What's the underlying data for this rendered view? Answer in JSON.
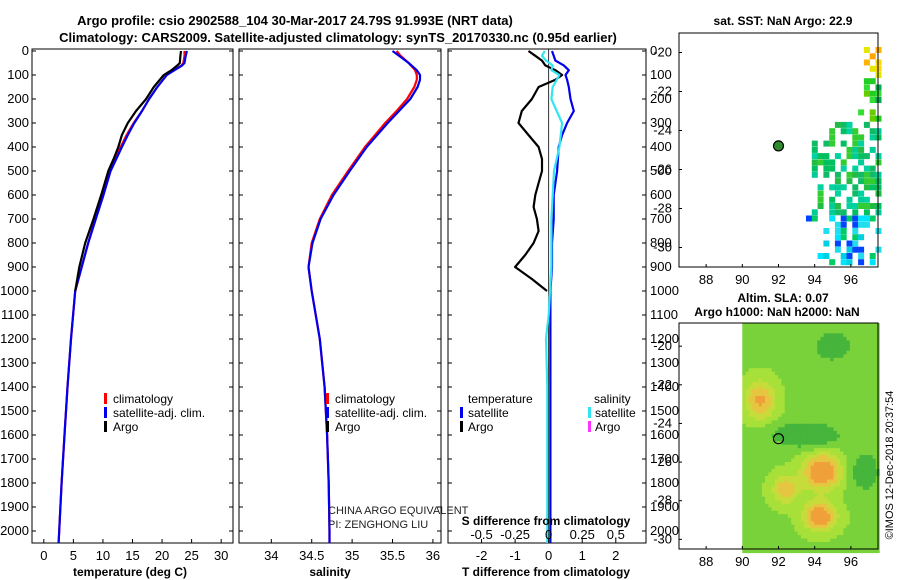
{
  "header": {
    "title_line1": "Argo profile: csio 2902588_104 30-Mar-2017 24.79S 91.993E (NRT data)",
    "title_line2": "Climatology: CARS2009. Satellite-adjusted climatology: synTS_20170330.nc (0.95d earlier)"
  },
  "colors": {
    "climatology": "#ff0000",
    "satellite": "#0000ee",
    "argo": "#000000",
    "salinity_satellite": "#33e5f0",
    "salinity_argo": "#ff33ff"
  },
  "depth_axis": {
    "range": [
      0,
      2050
    ],
    "ticks": [
      0,
      100,
      200,
      300,
      400,
      500,
      600,
      700,
      800,
      900,
      1000,
      1100,
      1200,
      1300,
      1400,
      1500,
      1600,
      1700,
      1800,
      1900,
      2000
    ],
    "tick_labels": [
      "0",
      "100",
      "200",
      "300",
      "400",
      "500",
      "600",
      "700",
      "800",
      "900",
      "1000",
      "1100",
      "1200",
      "1300",
      "1400",
      "1500",
      "1600",
      "1700",
      "1800",
      "1900",
      "2000"
    ]
  },
  "legend_labels": {
    "climatology": "climatology",
    "satellite_adj": "satellite-adj. clim.",
    "argo": "Argo"
  },
  "watermark": {
    "line1": "CHINA ARGO EQUIVALENT",
    "line2": "PI: ZENGHONG LIU"
  },
  "diff_legend": {
    "temperature_title": "temperature",
    "salinity_title": "salinity",
    "satellite": "satellite",
    "argo": "Argo"
  },
  "maps": {
    "sst_title": "sat. SST: NaN Argo: 22.9",
    "sla_title_line1": "Altim. SLA: 0.07",
    "sla_title_line2": "Argo h1000: NaN h2000: NaN",
    "lat_ticks": [
      "-20",
      "-22",
      "-24",
      "-26",
      "-28",
      "-30"
    ],
    "lon_ticks": [
      "88",
      "90",
      "92",
      "94",
      "96"
    ],
    "argo_position": {
      "lon": 92.0,
      "lat": -24.79
    }
  },
  "timestamp": "©IMOS 12-Dec-2018 20:37:54",
  "chart_data": [
    {
      "type": "line",
      "title": "temperature profile",
      "xlabel": "temperature (deg C)",
      "ylabel": "",
      "xlim": [
        -2,
        32
      ],
      "ylim": [
        2050,
        0
      ],
      "x_ticks": [
        0,
        5,
        10,
        15,
        20,
        25,
        30
      ],
      "x_tick_labels": [
        "0",
        "5",
        "10",
        "15",
        "20",
        "25",
        "30"
      ],
      "series": [
        {
          "name": "climatology",
          "depth": [
            0,
            20,
            50,
            60,
            80,
            100,
            150,
            200,
            250,
            300,
            350,
            400,
            500,
            600,
            700,
            800,
            900,
            1000,
            1200,
            1400,
            1600,
            1800,
            2000,
            2050
          ],
          "values": [
            23.8,
            23.8,
            23.6,
            23.3,
            22.0,
            20.8,
            19.2,
            17.8,
            16.6,
            15.2,
            14.0,
            13.0,
            11.2,
            10.0,
            8.7,
            7.5,
            6.4,
            5.3,
            4.6,
            4.0,
            3.5,
            3.0,
            2.6,
            2.5
          ]
        },
        {
          "name": "satellite-adj. clim.",
          "depth": [
            0,
            20,
            50,
            60,
            80,
            100,
            150,
            200,
            250,
            300,
            350,
            400,
            500,
            600,
            700,
            800,
            900,
            1000,
            1200,
            1400,
            1600,
            1800,
            2000,
            2050
          ],
          "values": [
            24.2,
            24.0,
            23.8,
            23.4,
            22.1,
            20.8,
            19.2,
            17.8,
            16.6,
            15.3,
            14.2,
            13.2,
            11.3,
            10.1,
            8.8,
            7.5,
            6.4,
            5.3,
            4.6,
            4.0,
            3.5,
            3.0,
            2.6,
            2.5
          ]
        },
        {
          "name": "Argo",
          "depth": [
            0,
            20,
            50,
            60,
            80,
            100,
            150,
            200,
            250,
            300,
            350,
            400,
            450,
            500,
            600,
            700,
            800,
            900,
            1000
          ],
          "values": [
            23.2,
            23.1,
            23.0,
            22.6,
            21.6,
            20.3,
            18.6,
            17.3,
            15.6,
            14.2,
            13.2,
            12.6,
            11.8,
            10.9,
            9.7,
            8.4,
            7.0,
            6.0,
            5.3
          ]
        }
      ]
    },
    {
      "type": "line",
      "title": "salinity profile",
      "xlabel": "salinity",
      "ylabel": "",
      "xlim": [
        33.6,
        36.1
      ],
      "ylim": [
        2050,
        0
      ],
      "x_ticks": [
        34,
        34.5,
        35,
        35.5,
        36
      ],
      "x_tick_labels": [
        "34",
        "34.5",
        "35",
        "35.5",
        "36"
      ],
      "series": [
        {
          "name": "climatology",
          "depth": [
            0,
            20,
            50,
            80,
            100,
            120,
            150,
            200,
            250,
            300,
            400,
            500,
            600,
            700,
            800,
            900,
            1000,
            1200,
            1400,
            1600,
            1800,
            2000,
            2050
          ],
          "values": [
            35.55,
            35.6,
            35.7,
            35.78,
            35.8,
            35.8,
            35.77,
            35.68,
            35.55,
            35.41,
            35.16,
            34.95,
            34.75,
            34.6,
            34.5,
            34.46,
            34.5,
            34.6,
            34.66,
            34.69,
            34.71,
            34.72,
            34.72
          ]
        },
        {
          "name": "satellite-adj. clim.",
          "depth": [
            0,
            20,
            50,
            80,
            100,
            120,
            150,
            200,
            250,
            300,
            400,
            500,
            600,
            700,
            800,
            900,
            1000,
            1200,
            1400,
            1600,
            1800,
            2000,
            2050
          ],
          "values": [
            35.5,
            35.58,
            35.7,
            35.8,
            35.84,
            35.84,
            35.81,
            35.72,
            35.58,
            35.44,
            35.18,
            34.97,
            34.77,
            34.61,
            34.51,
            34.46,
            34.5,
            34.6,
            34.66,
            34.69,
            34.71,
            34.72,
            34.72
          ]
        }
      ]
    },
    {
      "type": "line",
      "title": "difference from climatology",
      "xlabel": "T difference from climatology",
      "x2label": "S difference from climatology",
      "ylabel": "",
      "xlim": [
        -3.0,
        2.9
      ],
      "x2lim": [
        -0.75,
        0.725
      ],
      "ylim": [
        2050,
        0
      ],
      "x_ticks": [
        -2,
        -1,
        0,
        1,
        2
      ],
      "x_tick_labels": [
        "-2",
        "-1",
        "0",
        "1",
        "2"
      ],
      "x2_ticks": [
        -0.5,
        -0.25,
        0,
        0.25,
        0.5
      ],
      "x2_tick_labels": [
        "-0.5",
        "-0.25",
        "0",
        "0.25",
        "0.5"
      ],
      "series": [
        {
          "name": "temperature satellite",
          "axis": "T",
          "depth": [
            0,
            20,
            40,
            60,
            80,
            100,
            120,
            150,
            200,
            250,
            300,
            350,
            400,
            500,
            600,
            700,
            800,
            900,
            1000,
            1200,
            1400,
            1600,
            1800,
            2000,
            2050
          ],
          "values": [
            0.1,
            0.15,
            0.2,
            0.45,
            0.6,
            0.5,
            0.55,
            0.6,
            0.65,
            0.75,
            0.55,
            0.4,
            0.3,
            0.25,
            0.15,
            0.15,
            0.1,
            0.1,
            0.05,
            0.05,
            0.05,
            0.05,
            0.05,
            0.05,
            0.05
          ]
        },
        {
          "name": "temperature Argo",
          "axis": "T",
          "depth": [
            0,
            20,
            40,
            60,
            80,
            100,
            120,
            150,
            200,
            250,
            300,
            350,
            400,
            450,
            500,
            550,
            600,
            650,
            700,
            750,
            800,
            850,
            900,
            950,
            1000
          ],
          "values": [
            -0.6,
            -0.4,
            -0.2,
            -0.1,
            0.2,
            0.4,
            0.2,
            -0.3,
            -0.5,
            -0.8,
            -0.9,
            -0.6,
            -0.3,
            -0.2,
            -0.2,
            -0.3,
            -0.4,
            -0.45,
            -0.35,
            -0.3,
            -0.45,
            -0.7,
            -1.0,
            -0.5,
            -0.05
          ]
        },
        {
          "name": "salinity satellite",
          "axis": "S",
          "depth": [
            0,
            20,
            40,
            60,
            80,
            100,
            150,
            200,
            250,
            300,
            400,
            500,
            600,
            700,
            800,
            900,
            1000,
            1100,
            1200,
            1400,
            1600,
            1800,
            2000,
            2050
          ],
          "values": [
            -0.03,
            -0.05,
            -0.02,
            0.03,
            0.02,
            0.08,
            0.03,
            0.02,
            0.06,
            0.1,
            0.08,
            0.04,
            0.03,
            0.02,
            0.02,
            0.02,
            0.01,
            0.0,
            -0.02,
            -0.01,
            -0.01,
            -0.01,
            -0.01,
            -0.01
          ]
        }
      ]
    }
  ]
}
